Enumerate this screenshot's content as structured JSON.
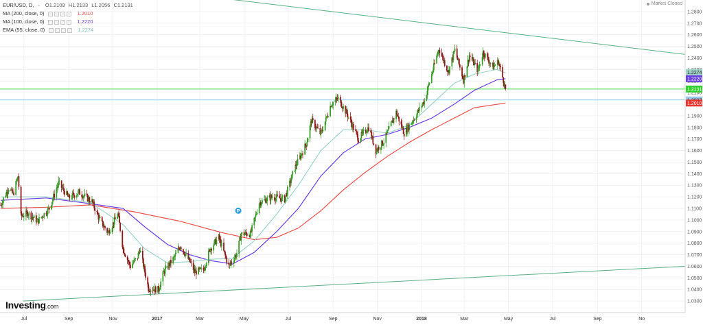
{
  "header": {
    "symbol": "EUR/USD, D,",
    "dash": "-",
    "ohlc": {
      "open": "O1.2109",
      "high": "H1.2133",
      "low": "L1.2056",
      "close": "C1.2131"
    },
    "status": "Market Closed"
  },
  "indicators": [
    {
      "label": "MA (200, close, 0)",
      "value": "1.2010",
      "color": "#e8534f"
    },
    {
      "label": "MA (100, close, 0)",
      "value": "1.2220",
      "color": "#6b3fe0"
    },
    {
      "label": "EMA (55, close, 0)",
      "value": "1.2274",
      "color": "#9fd3c7"
    }
  ],
  "logo": {
    "text": "Investing",
    "suffix": ".com"
  },
  "colors": {
    "up": "#3a9a2a",
    "down": "#8b1a1a",
    "trend_line": "#5aaf84",
    "price_line": "#4cd64c",
    "ma200_line": "#9dc9e8",
    "axis_text": "#555555",
    "grid": "#f2f2f2"
  },
  "chart_data": {
    "type": "candlestick",
    "title": "",
    "ylim": [
      1.02,
      1.29
    ],
    "y_ticks": [
      1.03,
      1.04,
      1.05,
      1.06,
      1.07,
      1.08,
      1.09,
      1.1,
      1.11,
      1.12,
      1.13,
      1.14,
      1.15,
      1.16,
      1.17,
      1.18,
      1.19,
      1.2,
      1.21,
      1.22,
      1.23,
      1.24,
      1.25,
      1.26,
      1.27,
      1.28
    ],
    "y_tick_labels": [
      "1.0300",
      "1.0400",
      "1.0500",
      "1.0600",
      "1.0700",
      "1.0800",
      "1.0900",
      "1.1000",
      "1.1100",
      "1.1200",
      "1.1300",
      "1.1400",
      "1.1500",
      "1.1600",
      "1.1700",
      "1.1800",
      "1.1900",
      "1.2000",
      "1.2100",
      "1.2200",
      "1.2300",
      "1.2400",
      "1.2500",
      "1.2600",
      "1.2700",
      "1.2800"
    ],
    "x_range": [
      "2016-05-29",
      "2018-12-31"
    ],
    "x_ticks": [
      {
        "label": "Jul",
        "date": "2016-07-01"
      },
      {
        "label": "Sep",
        "date": "2016-09-01"
      },
      {
        "label": "Nov",
        "date": "2016-11-01"
      },
      {
        "label": "2017",
        "date": "2017-01-01",
        "bold": true
      },
      {
        "label": "Mar",
        "date": "2017-03-01"
      },
      {
        "label": "May",
        "date": "2017-05-01"
      },
      {
        "label": "Jul",
        "date": "2017-07-01"
      },
      {
        "label": "Sep",
        "date": "2017-09-01"
      },
      {
        "label": "Nov",
        "date": "2017-11-01"
      },
      {
        "label": "2018",
        "date": "2018-01-01",
        "bold": true
      },
      {
        "label": "Mar",
        "date": "2018-03-01"
      },
      {
        "label": "May",
        "date": "2018-05-01"
      },
      {
        "label": "Jul",
        "date": "2018-07-01"
      },
      {
        "label": "Sep",
        "date": "2018-09-01"
      },
      {
        "label": "No",
        "date": "2018-11-01"
      }
    ],
    "price_anchors": [
      [
        "2016-05-30",
        1.113
      ],
      [
        "2016-06-10",
        1.128
      ],
      [
        "2016-06-16",
        1.122
      ],
      [
        "2016-06-23",
        1.138
      ],
      [
        "2016-06-27",
        1.103
      ],
      [
        "2016-07-06",
        1.106
      ],
      [
        "2016-07-20",
        1.099
      ],
      [
        "2016-08-05",
        1.11
      ],
      [
        "2016-08-18",
        1.132
      ],
      [
        "2016-09-01",
        1.119
      ],
      [
        "2016-09-15",
        1.124
      ],
      [
        "2016-10-03",
        1.116
      ],
      [
        "2016-10-13",
        1.101
      ],
      [
        "2016-10-25",
        1.089
      ],
      [
        "2016-11-08",
        1.105
      ],
      [
        "2016-11-15",
        1.075
      ],
      [
        "2016-11-25",
        1.06
      ],
      [
        "2016-12-05",
        1.068
      ],
      [
        "2016-12-08",
        1.075
      ],
      [
        "2016-12-20",
        1.041
      ],
      [
        "2017-01-03",
        1.04
      ],
      [
        "2017-01-10",
        1.055
      ],
      [
        "2017-01-25",
        1.068
      ],
      [
        "2017-02-02",
        1.078
      ],
      [
        "2017-02-15",
        1.064
      ],
      [
        "2017-02-22",
        1.055
      ],
      [
        "2017-03-06",
        1.057
      ],
      [
        "2017-03-15",
        1.075
      ],
      [
        "2017-03-27",
        1.085
      ],
      [
        "2017-04-10",
        1.06
      ],
      [
        "2017-04-21",
        1.071
      ],
      [
        "2017-04-27",
        1.088
      ],
      [
        "2017-05-10",
        1.088
      ],
      [
        "2017-05-22",
        1.115
      ],
      [
        "2017-06-09",
        1.12
      ],
      [
        "2017-06-26",
        1.118
      ],
      [
        "2017-07-10",
        1.145
      ],
      [
        "2017-07-26",
        1.166
      ],
      [
        "2017-08-02",
        1.186
      ],
      [
        "2017-08-15",
        1.174
      ],
      [
        "2017-08-29",
        1.2
      ],
      [
        "2017-09-08",
        1.205
      ],
      [
        "2017-09-20",
        1.192
      ],
      [
        "2017-10-06",
        1.17
      ],
      [
        "2017-10-20",
        1.18
      ],
      [
        "2017-10-30",
        1.16
      ],
      [
        "2017-11-10",
        1.168
      ],
      [
        "2017-11-27",
        1.193
      ],
      [
        "2017-12-08",
        1.175
      ],
      [
        "2017-12-20",
        1.186
      ],
      [
        "2018-01-05",
        1.203
      ],
      [
        "2018-01-16",
        1.228
      ],
      [
        "2018-01-25",
        1.248
      ],
      [
        "2018-02-07",
        1.228
      ],
      [
        "2018-02-16",
        1.247
      ],
      [
        "2018-02-28",
        1.221
      ],
      [
        "2018-03-08",
        1.242
      ],
      [
        "2018-03-20",
        1.229
      ],
      [
        "2018-03-27",
        1.245
      ],
      [
        "2018-04-10",
        1.232
      ],
      [
        "2018-04-17",
        1.237
      ],
      [
        "2018-04-24",
        1.221
      ],
      [
        "2018-04-27",
        1.213
      ]
    ],
    "series": [
      {
        "name": "MA (200, close, 0)",
        "color": "#e8534f",
        "points": [
          [
            "2016-05-30",
            1.11
          ],
          [
            "2016-08-01",
            1.111
          ],
          [
            "2016-10-01",
            1.113
          ],
          [
            "2016-12-01",
            1.107
          ],
          [
            "2017-02-01",
            1.099
          ],
          [
            "2017-04-01",
            1.089
          ],
          [
            "2017-05-15",
            1.083
          ],
          [
            "2017-06-15",
            1.085
          ],
          [
            "2017-07-15",
            1.093
          ],
          [
            "2017-08-15",
            1.108
          ],
          [
            "2017-09-15",
            1.126
          ],
          [
            "2017-10-15",
            1.141
          ],
          [
            "2017-11-15",
            1.155
          ],
          [
            "2017-12-15",
            1.167
          ],
          [
            "2018-01-15",
            1.178
          ],
          [
            "2018-02-15",
            1.188
          ],
          [
            "2018-03-15",
            1.197
          ],
          [
            "2018-04-27",
            1.201
          ]
        ]
      },
      {
        "name": "MA (100, close, 0)",
        "color": "#6b3fe0",
        "points": [
          [
            "2016-05-30",
            1.117
          ],
          [
            "2016-08-01",
            1.119
          ],
          [
            "2016-10-01",
            1.114
          ],
          [
            "2016-11-15",
            1.11
          ],
          [
            "2016-12-15",
            1.094
          ],
          [
            "2017-01-15",
            1.079
          ],
          [
            "2017-02-15",
            1.07
          ],
          [
            "2017-03-15",
            1.065
          ],
          [
            "2017-04-15",
            1.062
          ],
          [
            "2017-05-15",
            1.072
          ],
          [
            "2017-06-15",
            1.09
          ],
          [
            "2017-07-15",
            1.11
          ],
          [
            "2017-08-15",
            1.138
          ],
          [
            "2017-09-15",
            1.158
          ],
          [
            "2017-10-15",
            1.17
          ],
          [
            "2017-11-15",
            1.174
          ],
          [
            "2017-12-15",
            1.18
          ],
          [
            "2018-01-15",
            1.188
          ],
          [
            "2018-02-15",
            1.2
          ],
          [
            "2018-03-15",
            1.212
          ],
          [
            "2018-04-15",
            1.221
          ],
          [
            "2018-04-27",
            1.222
          ]
        ]
      },
      {
        "name": "EMA (55, close, 0)",
        "color": "#9fd3c7",
        "points": [
          [
            "2016-05-30",
            1.12
          ],
          [
            "2016-08-01",
            1.12
          ],
          [
            "2016-10-01",
            1.115
          ],
          [
            "2016-11-15",
            1.096
          ],
          [
            "2016-12-15",
            1.075
          ],
          [
            "2017-01-15",
            1.063
          ],
          [
            "2017-02-15",
            1.064
          ],
          [
            "2017-03-15",
            1.066
          ],
          [
            "2017-04-15",
            1.067
          ],
          [
            "2017-05-15",
            1.082
          ],
          [
            "2017-06-15",
            1.105
          ],
          [
            "2017-07-15",
            1.13
          ],
          [
            "2017-08-15",
            1.16
          ],
          [
            "2017-09-15",
            1.178
          ],
          [
            "2017-10-15",
            1.178
          ],
          [
            "2017-11-15",
            1.175
          ],
          [
            "2017-12-15",
            1.182
          ],
          [
            "2018-01-15",
            1.2
          ],
          [
            "2018-02-15",
            1.218
          ],
          [
            "2018-03-15",
            1.226
          ],
          [
            "2018-04-15",
            1.23
          ],
          [
            "2018-04-27",
            1.227
          ]
        ]
      }
    ],
    "trend_lines": [
      {
        "from": [
          "2016-12-09",
          1.3
        ],
        "to": [
          "2018-12-31",
          1.243
        ]
      },
      {
        "from": [
          "2016-06-30",
          1.03
        ],
        "to": [
          "2018-12-31",
          1.06
        ]
      }
    ],
    "horizontal_lines": [
      {
        "value": 1.2131,
        "color": "#4cd64c"
      },
      {
        "value": 1.2037,
        "color": "#9dc9e8"
      }
    ],
    "price_labels": [
      {
        "text": "1.2274",
        "value": 1.2274,
        "bg": "#9fd3c7",
        "fg": "#222222"
      },
      {
        "text": "1.2220",
        "value": 1.222,
        "bg": "#6b3fe0",
        "fg": "#ffffff"
      },
      {
        "text": "1.2131",
        "value": 1.2131,
        "bg": "#2fd12f",
        "fg": "#ffffff"
      },
      {
        "text": "1.2037",
        "value": 1.2037,
        "bg": "#9dc9e8",
        "fg": "#222222"
      },
      {
        "text": "1.2010",
        "value": 1.201,
        "bg": "#e8342f",
        "fg": "#ffffff"
      }
    ],
    "markers": [
      {
        "text": "P",
        "date": "2017-04-23",
        "value": 1.108
      }
    ]
  }
}
